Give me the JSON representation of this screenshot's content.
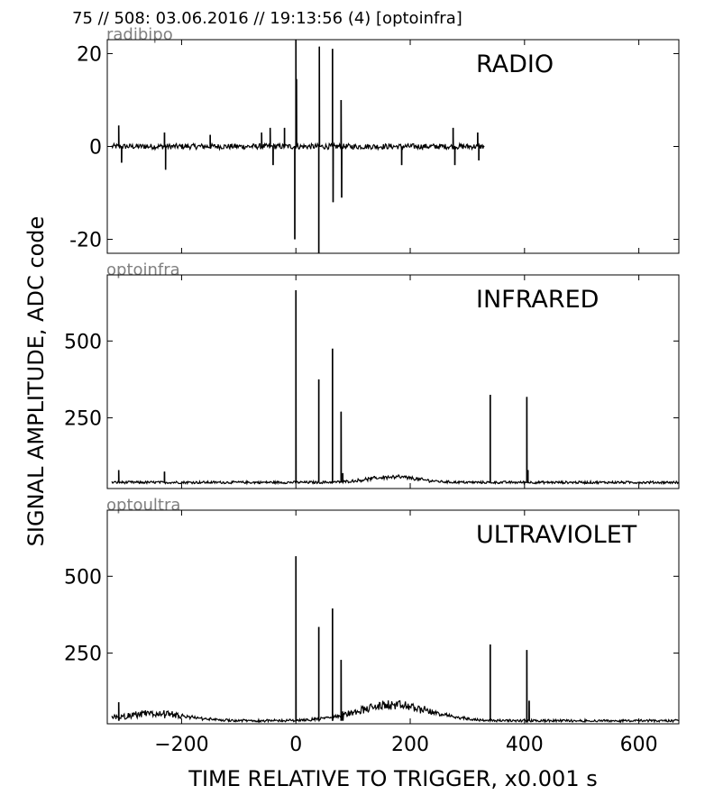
{
  "header": "75 // 508:   03.06.2016 // 19:13:56 (4)  [optoinfra]",
  "xlabel": "TIME RELATIVE TO TRIGGER,   x0.001 s",
  "ylabel": "SIGNAL AMPLITUDE,  ADC code",
  "chart_data": [
    {
      "type": "line",
      "channel": "radibipo",
      "title": "RADIO",
      "xlim": [
        -330,
        670
      ],
      "ylim": [
        -23,
        23
      ],
      "yticks": [
        20,
        0,
        -20
      ],
      "ytick_labels": [
        "20",
        "0",
        "-20"
      ],
      "baseline": 0,
      "noise": 0.6,
      "x_end": 330,
      "spikes": [
        {
          "x": -310,
          "y": 4.5
        },
        {
          "x": -305,
          "y": -3.5
        },
        {
          "x": -230,
          "y": 3
        },
        {
          "x": -228,
          "y": -5
        },
        {
          "x": -150,
          "y": 2.5
        },
        {
          "x": -60,
          "y": 3
        },
        {
          "x": -45,
          "y": 4
        },
        {
          "x": -40,
          "y": -4
        },
        {
          "x": -20,
          "y": 4
        },
        {
          "x": -2,
          "y": -20
        },
        {
          "x": 0,
          "y": 23
        },
        {
          "x": 1,
          "y": 14.5
        },
        {
          "x": 40,
          "y": -23
        },
        {
          "x": 41,
          "y": 21.5
        },
        {
          "x": 64,
          "y": 21
        },
        {
          "x": 65,
          "y": -12
        },
        {
          "x": 79,
          "y": 10
        },
        {
          "x": 80,
          "y": -11
        },
        {
          "x": 185,
          "y": -4
        },
        {
          "x": 275,
          "y": 4
        },
        {
          "x": 278,
          "y": -4
        },
        {
          "x": 318,
          "y": 3
        },
        {
          "x": 320,
          "y": -3
        }
      ],
      "series": [
        {
          "values_description": ""
        }
      ]
    },
    {
      "type": "line",
      "channel": "optoinfra",
      "title": "INFRARED",
      "xlim": [
        -330,
        670
      ],
      "ylim": [
        20,
        715
      ],
      "yticks": [
        500,
        250
      ],
      "ytick_labels": [
        "500",
        "250"
      ],
      "baseline": 40,
      "noise": 4,
      "x_end": 670,
      "spikes": [
        {
          "x": -310,
          "y": 80
        },
        {
          "x": -230,
          "y": 75
        },
        {
          "x": 0,
          "y": 665
        },
        {
          "x": 40,
          "y": 375
        },
        {
          "x": 64,
          "y": 475
        },
        {
          "x": 79,
          "y": 270
        },
        {
          "x": 82,
          "y": 70
        },
        {
          "x": 340,
          "y": 325
        },
        {
          "x": 404,
          "y": 318
        },
        {
          "x": 406,
          "y": 80
        }
      ],
      "hump": {
        "center": 170,
        "width": 60,
        "height": 18
      }
    },
    {
      "type": "line",
      "channel": "optoultra",
      "title": "ULTRAVIOLET",
      "xlim": [
        -330,
        670
      ],
      "ylim": [
        20,
        715
      ],
      "yticks": [
        500,
        250
      ],
      "ytick_labels": [
        "500",
        "250"
      ],
      "baseline": 30,
      "noise": 4,
      "x_end": 670,
      "spikes": [
        {
          "x": -310,
          "y": 90
        },
        {
          "x": 0,
          "y": 565
        },
        {
          "x": 40,
          "y": 335
        },
        {
          "x": 64,
          "y": 395
        },
        {
          "x": 79,
          "y": 228
        },
        {
          "x": 82,
          "y": 60
        },
        {
          "x": 340,
          "y": 278
        },
        {
          "x": 404,
          "y": 260
        },
        {
          "x": 408,
          "y": 95
        }
      ],
      "hump": {
        "center": 170,
        "width": 90,
        "height": 50
      },
      "hump2": {
        "center": -250,
        "width": 80,
        "height": 22
      }
    }
  ],
  "xticks": [
    -200,
    0,
    200,
    400,
    600
  ],
  "xtick_labels": [
    "−200",
    "0",
    "200",
    "400",
    "600"
  ]
}
